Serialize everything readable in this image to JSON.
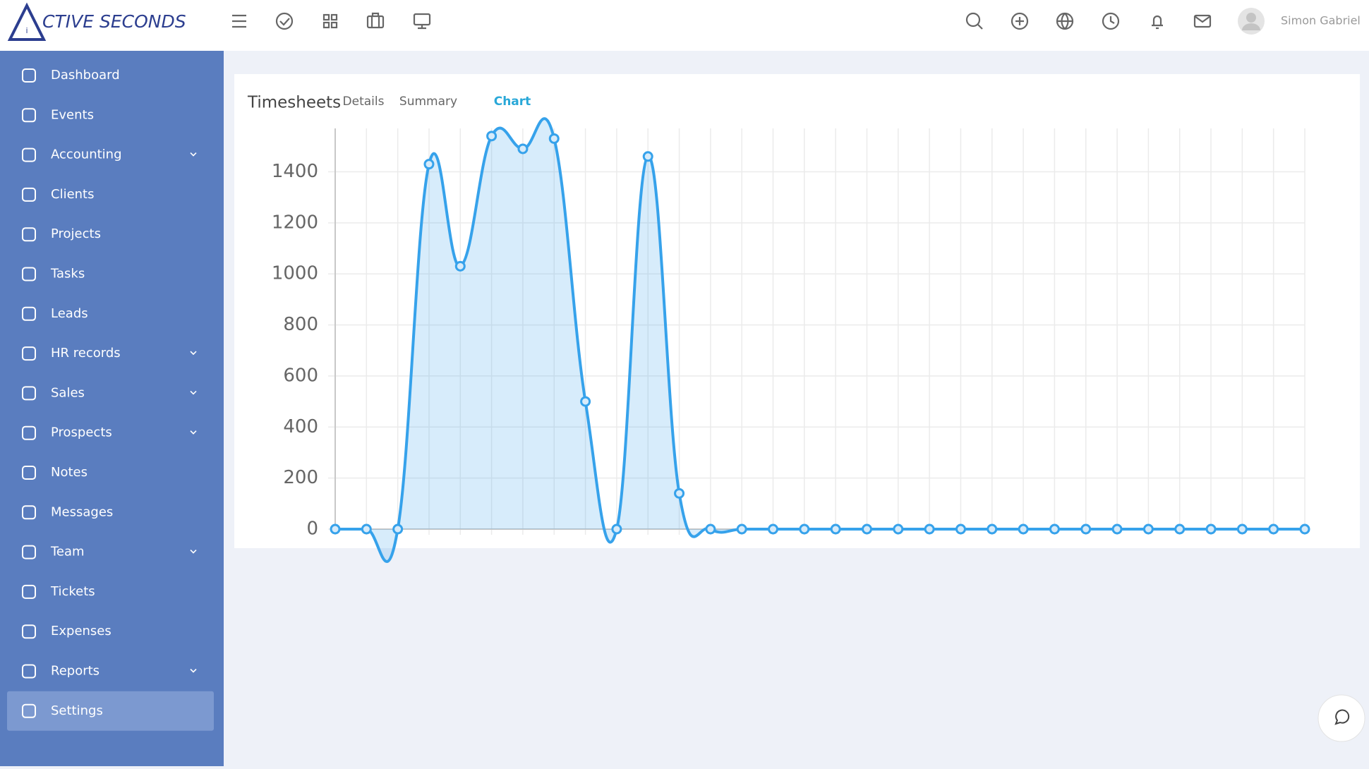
{
  "header": {
    "logo": "CTIVE SECONDS",
    "user_name": "Simon Gabriel"
  },
  "sidebar": {
    "items": [
      {
        "label": "Dashboard"
      },
      {
        "label": "Events"
      },
      {
        "label": "Accounting",
        "submenu": true
      },
      {
        "label": "Clients"
      },
      {
        "label": "Projects"
      },
      {
        "label": "Tasks"
      },
      {
        "label": "Leads"
      },
      {
        "label": "HR records",
        "submenu": true
      },
      {
        "label": "Sales",
        "submenu": true
      },
      {
        "label": "Prospects",
        "submenu": true
      },
      {
        "label": "Notes"
      },
      {
        "label": "Messages"
      },
      {
        "label": "Team",
        "submenu": true
      },
      {
        "label": "Tickets"
      },
      {
        "label": "Expenses"
      },
      {
        "label": "Reports",
        "submenu": true
      },
      {
        "label": "Settings",
        "active": true
      }
    ]
  },
  "card": {
    "title": "Timesheets",
    "tabs": [
      {
        "label": "Details"
      },
      {
        "label": "Summary"
      },
      {
        "label": "Chart",
        "active": true
      }
    ]
  },
  "chart_data": {
    "type": "line",
    "categories": [
      null,
      null,
      null,
      null,
      null,
      null,
      null,
      null,
      null,
      null,
      null,
      null,
      null,
      null,
      null,
      null,
      null,
      null,
      null,
      null,
      null,
      null,
      null,
      null,
      null,
      null,
      null,
      null,
      null,
      null,
      null,
      null
    ],
    "values": [
      0,
      0,
      0,
      1430,
      1030,
      1540,
      1490,
      1530,
      500,
      0,
      1460,
      140,
      0,
      0,
      0,
      0,
      0,
      0,
      0,
      0,
      0,
      0,
      0,
      0,
      0,
      0,
      0,
      0,
      0,
      0,
      0,
      0
    ],
    "color": "#36a2eb",
    "fill": true,
    "grid": true,
    "ylim": [
      0,
      1570
    ],
    "yticks": [
      0,
      200,
      400,
      600,
      800,
      1000,
      1200,
      1400
    ]
  }
}
